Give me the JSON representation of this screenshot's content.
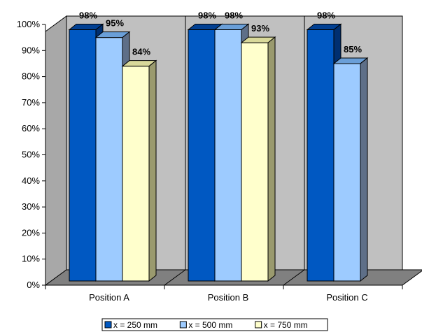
{
  "chart_data": {
    "type": "bar",
    "categories": [
      "Position A",
      "Position B",
      "Position C"
    ],
    "series": [
      {
        "name": "x = 250 mm",
        "values": [
          98,
          98,
          98
        ],
        "labels": [
          "98%",
          "98%",
          "98%"
        ],
        "color": "#0058c2",
        "top": "#003f92",
        "side": "#002f70"
      },
      {
        "name": "x = 500 mm",
        "values": [
          95,
          98,
          85
        ],
        "labels": [
          "95%",
          "98%",
          "85%"
        ],
        "color": "#9dcbff",
        "top": "#6a9fd8",
        "side": "#5e6f88"
      },
      {
        "name": "x = 750 mm",
        "values": [
          84,
          93,
          null
        ],
        "labels": [
          "84%",
          "93%",
          ""
        ],
        "color": "#ffffcc",
        "top": "#d9d99a",
        "side": "#9a9a6e"
      }
    ],
    "y_ticks": [
      "0%",
      "10%",
      "20%",
      "30%",
      "40%",
      "50%",
      "60%",
      "70%",
      "80%",
      "90%",
      "100%"
    ],
    "ylim": [
      0,
      100
    ],
    "grid": false,
    "legend": "bottom",
    "colors": {
      "wall": "#c0c0c0",
      "floor": "#808080",
      "frame": "#000000"
    }
  }
}
